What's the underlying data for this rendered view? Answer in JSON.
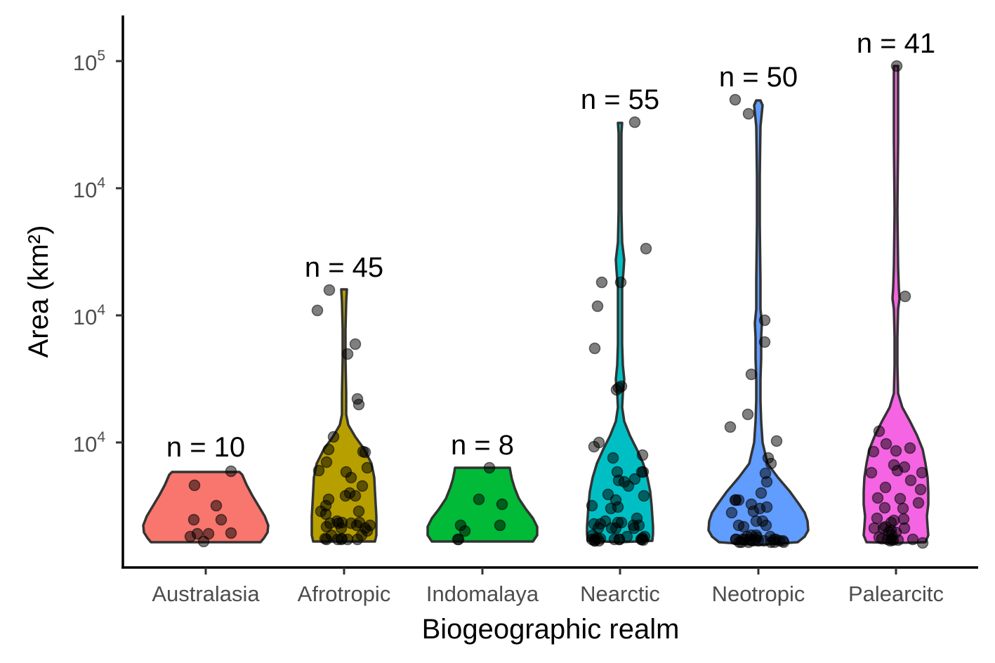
{
  "chart_data": {
    "type": "violin",
    "xlabel": "Biogeographic realm",
    "ylabel": "Area (km²)",
    "yscale": "log",
    "y_tick_labels": [
      {
        "base": "10",
        "exp": "4"
      },
      {
        "base": "10",
        "exp": "4"
      },
      {
        "base": "10",
        "exp": "4"
      },
      {
        "base": "10",
        "exp": "5"
      }
    ],
    "categories": [
      "Australasia",
      "Afrotropic",
      "Indomalaya",
      "Nearctic",
      "Neotropic",
      "Palearcitc"
    ],
    "colors": [
      "#F8766D",
      "#B79F00",
      "#00BA38",
      "#00BFC4",
      "#619CFF",
      "#F564E3"
    ],
    "n_labels": [
      "n = 10",
      "n = 45",
      "n = 8",
      "n = 55",
      "n = 50",
      "n = 41"
    ],
    "grid": false,
    "legend": "none"
  }
}
